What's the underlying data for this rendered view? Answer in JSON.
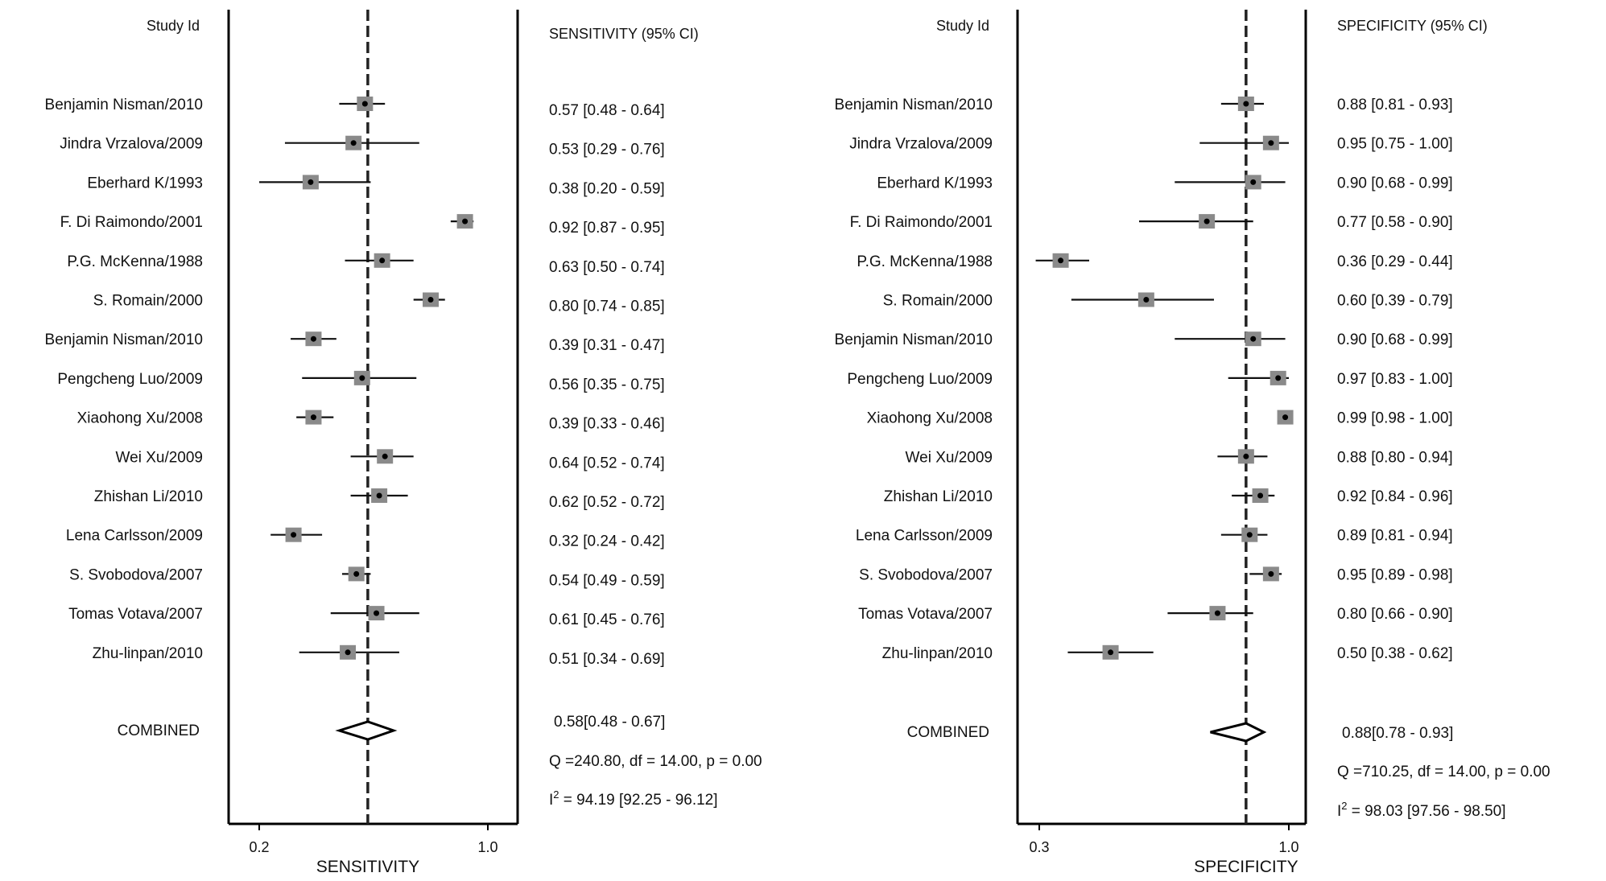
{
  "chart_data": [
    {
      "type": "forest",
      "title": "",
      "id_header": "Study Id",
      "value_header": "SENSITIVITY (95% CI)",
      "xlabel": "SENSITIVITY",
      "xlim": [
        0.2,
        1.0
      ],
      "xticks": [
        "0.2",
        "1.0"
      ],
      "studies": [
        {
          "name": "Benjamin Nisman/2010",
          "est": 0.57,
          "lo": 0.48,
          "hi": 0.64
        },
        {
          "name": "Jindra Vrzalova/2009",
          "est": 0.53,
          "lo": 0.29,
          "hi": 0.76
        },
        {
          "name": "Eberhard K/1993",
          "est": 0.38,
          "lo": 0.2,
          "hi": 0.59
        },
        {
          "name": "F. Di Raimondo/2001",
          "est": 0.92,
          "lo": 0.87,
          "hi": 0.95
        },
        {
          "name": "P.G. McKenna/1988",
          "est": 0.63,
          "lo": 0.5,
          "hi": 0.74
        },
        {
          "name": "S. Romain/2000",
          "est": 0.8,
          "lo": 0.74,
          "hi": 0.85
        },
        {
          "name": "Benjamin Nisman/2010",
          "est": 0.39,
          "lo": 0.31,
          "hi": 0.47
        },
        {
          "name": "Pengcheng Luo/2009",
          "est": 0.56,
          "lo": 0.35,
          "hi": 0.75
        },
        {
          "name": "Xiaohong Xu/2008",
          "est": 0.39,
          "lo": 0.33,
          "hi": 0.46
        },
        {
          "name": "Wei Xu/2009",
          "est": 0.64,
          "lo": 0.52,
          "hi": 0.74
        },
        {
          "name": "Zhishan Li/2010",
          "est": 0.62,
          "lo": 0.52,
          "hi": 0.72
        },
        {
          "name": "Lena Carlsson/2009",
          "est": 0.32,
          "lo": 0.24,
          "hi": 0.42
        },
        {
          "name": "S. Svobodova/2007",
          "est": 0.54,
          "lo": 0.49,
          "hi": 0.59
        },
        {
          "name": "Tomas Votava/2007",
          "est": 0.61,
          "lo": 0.45,
          "hi": 0.76
        },
        {
          "name": "Zhu-linpan/2010",
          "est": 0.51,
          "lo": 0.34,
          "hi": 0.69
        }
      ],
      "combined": {
        "label": "COMBINED",
        "est": 0.58,
        "lo": 0.48,
        "hi": 0.67,
        "text": "0.58[0.48 - 0.67]"
      },
      "heterogeneity": "Q =240.80, df = 14.00, p =  0.00",
      "i2": {
        "prefix": "I",
        "sup": "2",
        "text": " = 94.19 [92.25 - 96.12]"
      }
    },
    {
      "type": "forest",
      "title": "",
      "id_header": "Study Id",
      "value_header": "SPECIFICITY (95% CI)",
      "xlabel": "SPECIFICITY",
      "xlim": [
        0.3,
        1.0
      ],
      "xticks": [
        "0.3",
        "1.0"
      ],
      "studies": [
        {
          "name": "Benjamin Nisman/2010",
          "est": 0.88,
          "lo": 0.81,
          "hi": 0.93
        },
        {
          "name": "Jindra Vrzalova/2009",
          "est": 0.95,
          "lo": 0.75,
          "hi": 1.0
        },
        {
          "name": "Eberhard K/1993",
          "est": 0.9,
          "lo": 0.68,
          "hi": 0.99
        },
        {
          "name": "F. Di Raimondo/2001",
          "est": 0.77,
          "lo": 0.58,
          "hi": 0.9
        },
        {
          "name": "P.G. McKenna/1988",
          "est": 0.36,
          "lo": 0.29,
          "hi": 0.44
        },
        {
          "name": "S. Romain/2000",
          "est": 0.6,
          "lo": 0.39,
          "hi": 0.79
        },
        {
          "name": "Benjamin Nisman/2010",
          "est": 0.9,
          "lo": 0.68,
          "hi": 0.99
        },
        {
          "name": "Pengcheng Luo/2009",
          "est": 0.97,
          "lo": 0.83,
          "hi": 1.0
        },
        {
          "name": "Xiaohong Xu/2008",
          "est": 0.99,
          "lo": 0.98,
          "hi": 1.0
        },
        {
          "name": "Wei Xu/2009",
          "est": 0.88,
          "lo": 0.8,
          "hi": 0.94
        },
        {
          "name": "Zhishan Li/2010",
          "est": 0.92,
          "lo": 0.84,
          "hi": 0.96
        },
        {
          "name": "Lena Carlsson/2009",
          "est": 0.89,
          "lo": 0.81,
          "hi": 0.94
        },
        {
          "name": "S. Svobodova/2007",
          "est": 0.95,
          "lo": 0.89,
          "hi": 0.98
        },
        {
          "name": "Tomas Votava/2007",
          "est": 0.8,
          "lo": 0.66,
          "hi": 0.9
        },
        {
          "name": "Zhu-linpan/2010",
          "est": 0.5,
          "lo": 0.38,
          "hi": 0.62
        }
      ],
      "combined": {
        "label": "COMBINED",
        "est": 0.88,
        "lo": 0.78,
        "hi": 0.93,
        "text": "0.88[0.78 - 0.93]"
      },
      "heterogeneity": "Q =710.25, df = 14.00, p =  0.00",
      "i2": {
        "prefix": "I",
        "sup": "2",
        "text": " = 98.03 [97.56 - 98.50]"
      }
    }
  ]
}
